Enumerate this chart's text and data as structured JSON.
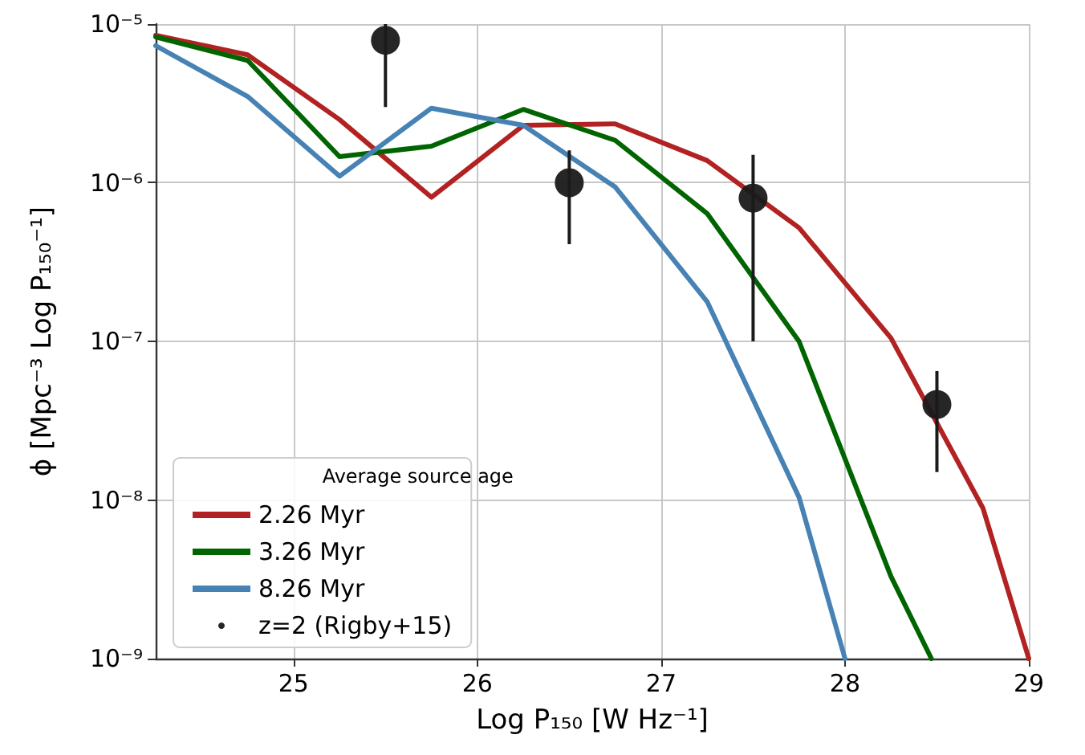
{
  "chart_data": {
    "type": "line",
    "xlabel": "Log P₁₅₀ [W Hz⁻¹]",
    "ylabel": "ϕ [Mpc⁻³ Log P₁₅₀⁻¹]",
    "legend_title": "Average source age",
    "series": [
      {
        "name": "2.26 Myr",
        "color": "#b22222",
        "x": [
          24.25,
          24.75,
          25.25,
          25.75,
          26.25,
          26.75,
          27.25,
          27.75,
          28.25,
          28.75,
          29
        ],
        "values": [
          8.5e-06,
          6.4e-06,
          2.5e-06,
          8.1e-07,
          2.3e-06,
          2.35e-06,
          1.38e-06,
          5.2e-07,
          1.05e-07,
          8.9e-09,
          1e-09
        ]
      },
      {
        "name": "3.26 Myr",
        "color": "#006400",
        "x": [
          24.25,
          24.75,
          25.25,
          25.75,
          26.25,
          26.75,
          27.25,
          27.75,
          28.25,
          28.47
        ],
        "values": [
          8.3e-06,
          5.9e-06,
          1.46e-06,
          1.7e-06,
          2.9e-06,
          1.85e-06,
          6.4e-07,
          1e-07,
          3.3e-09,
          1e-09
        ]
      },
      {
        "name": "8.26 Myr",
        "color": "#4682b4",
        "x": [
          24.25,
          24.75,
          25.25,
          25.75,
          26.25,
          26.75,
          27.25,
          27.75,
          28.0
        ],
        "values": [
          7.3e-06,
          3.5e-06,
          1.1e-06,
          2.95e-06,
          2.3e-06,
          9.4e-07,
          1.78e-07,
          1.04e-08,
          1e-09
        ]
      },
      {
        "name": "z=2 (Rigby+15)",
        "type": "scatter",
        "color": "#1a1a1a",
        "marker": "circle",
        "x": [
          25.5,
          26.5,
          27.5,
          28.5
        ],
        "values": [
          7.9e-06,
          1e-06,
          8e-07,
          4e-08
        ],
        "errors": [
          [
            3e-06,
            1e-05
          ],
          [
            4.1e-07,
            1.6e-06
          ],
          [
            1e-07,
            1.5e-06
          ],
          [
            1.5e-08,
            6.5e-08
          ]
        ]
      }
    ],
    "xlim": [
      24.25,
      29
    ],
    "xticks": [
      25,
      26,
      27,
      28,
      29
    ],
    "ylim": [
      1e-09,
      1e-05
    ],
    "yticks": [
      {
        "value": 1e-09,
        "label": "10⁻⁹"
      },
      {
        "value": 1e-08,
        "label": "10⁻⁸"
      },
      {
        "value": 1e-07,
        "label": "10⁻⁷"
      },
      {
        "value": 1e-06,
        "label": "10⁻⁶"
      },
      {
        "value": 1e-05,
        "label": "10⁻⁵"
      }
    ],
    "log": "y",
    "grid": true,
    "legend": "bottom left",
    "marker": "none",
    "line_style": "solid"
  }
}
